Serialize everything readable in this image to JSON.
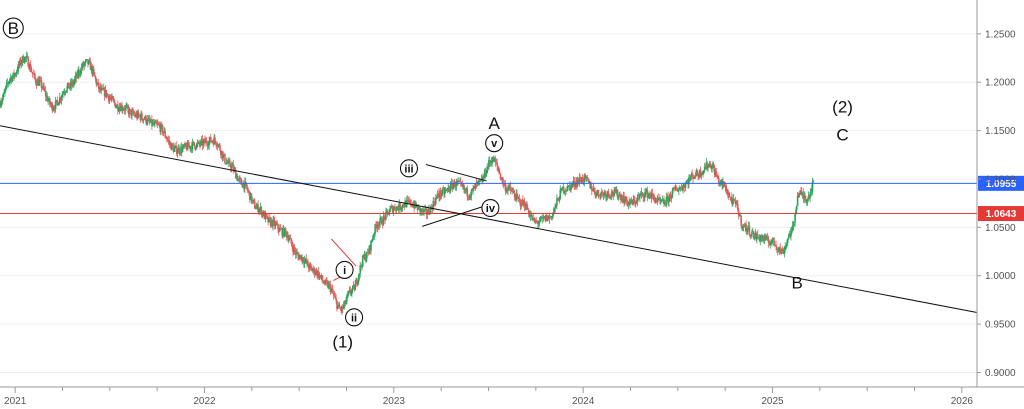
{
  "chart_data": {
    "type": "candlestick",
    "instrument_hint": "EUR/USD weekly",
    "y_axis": {
      "ticks": [
        "1.2500",
        "1.2000",
        "1.1500",
        "1.1000",
        "1.0500",
        "1.0000",
        "0.9500",
        "0.9000"
      ],
      "tick_values": [
        1.25,
        1.2,
        1.15,
        1.1,
        1.05,
        1.0,
        0.95,
        0.9
      ],
      "range": [
        0.885,
        1.285
      ],
      "position": "right"
    },
    "x_axis": {
      "ticks": [
        "2021",
        "2022",
        "2023",
        "2024",
        "2025",
        "2026"
      ],
      "tick_values": [
        2021.0,
        2022.0,
        2023.0,
        2024.0,
        2025.0,
        2026.0
      ],
      "range": [
        2020.92,
        2026.08
      ]
    },
    "price_path": [
      [
        2020.92,
        1.18
      ],
      [
        2020.98,
        1.205
      ],
      [
        2021.05,
        1.225
      ],
      [
        2021.12,
        1.2
      ],
      [
        2021.2,
        1.175
      ],
      [
        2021.28,
        1.195
      ],
      [
        2021.38,
        1.22
      ],
      [
        2021.46,
        1.19
      ],
      [
        2021.55,
        1.175
      ],
      [
        2021.65,
        1.165
      ],
      [
        2021.75,
        1.155
      ],
      [
        2021.85,
        1.13
      ],
      [
        2021.95,
        1.135
      ],
      [
        2022.05,
        1.14
      ],
      [
        2022.13,
        1.115
      ],
      [
        2022.2,
        1.095
      ],
      [
        2022.28,
        1.07
      ],
      [
        2022.35,
        1.055
      ],
      [
        2022.42,
        1.045
      ],
      [
        2022.5,
        1.02
      ],
      [
        2022.58,
        1.005
      ],
      [
        2022.65,
        0.99
      ],
      [
        2022.72,
        0.965
      ],
      [
        2022.78,
        0.985
      ],
      [
        2022.85,
        1.02
      ],
      [
        2022.92,
        1.055
      ],
      [
        2023.0,
        1.07
      ],
      [
        2023.08,
        1.075
      ],
      [
        2023.17,
        1.065
      ],
      [
        2023.25,
        1.085
      ],
      [
        2023.33,
        1.095
      ],
      [
        2023.4,
        1.085
      ],
      [
        2023.45,
        1.095
      ],
      [
        2023.52,
        1.12
      ],
      [
        2023.6,
        1.09
      ],
      [
        2023.68,
        1.075
      ],
      [
        2023.75,
        1.055
      ],
      [
        2023.82,
        1.06
      ],
      [
        2023.9,
        1.09
      ],
      [
        2024.0,
        1.1
      ],
      [
        2024.08,
        1.085
      ],
      [
        2024.17,
        1.085
      ],
      [
        2024.25,
        1.075
      ],
      [
        2024.33,
        1.085
      ],
      [
        2024.42,
        1.075
      ],
      [
        2024.5,
        1.09
      ],
      [
        2024.6,
        1.105
      ],
      [
        2024.67,
        1.115
      ],
      [
        2024.73,
        1.095
      ],
      [
        2024.8,
        1.075
      ],
      [
        2024.85,
        1.05
      ],
      [
        2024.92,
        1.04
      ],
      [
        2025.0,
        1.035
      ],
      [
        2025.05,
        1.025
      ],
      [
        2025.1,
        1.045
      ],
      [
        2025.14,
        1.085
      ],
      [
        2025.18,
        1.08
      ],
      [
        2025.22,
        1.095
      ]
    ],
    "reference_lines": [
      {
        "name": "current",
        "value": 1.0955,
        "label": "1.0955",
        "color": "#2962ff"
      },
      {
        "name": "level",
        "value": 1.0643,
        "label": "1.0643",
        "color": "#e53935"
      }
    ],
    "trendlines": [
      {
        "from": [
          2020.92,
          1.155
        ],
        "to": [
          2026.08,
          0.962
        ],
        "color": "#111111"
      },
      {
        "from": [
          2023.17,
          1.115
        ],
        "to": [
          2023.49,
          1.098
        ],
        "color": "#111111"
      },
      {
        "from": [
          2023.15,
          1.051
        ],
        "to": [
          2023.51,
          1.074
        ],
        "color": "#111111"
      },
      {
        "from": [
          2022.67,
          1.038
        ],
        "to": [
          2022.8,
          1.01
        ],
        "color": "#e53935"
      },
      {
        "from": [
          2022.68,
          0.995
        ],
        "to": [
          2022.77,
          1.004
        ],
        "color": "#e53935"
      }
    ],
    "annotations": {
      "circled": [
        {
          "text": "B",
          "at": [
            2020.99,
            1.256
          ],
          "size": "big"
        },
        {
          "text": "i",
          "at": [
            2022.74,
            1.006
          ],
          "size": "small"
        },
        {
          "text": "ii",
          "at": [
            2022.79,
            0.957
          ],
          "size": "small"
        },
        {
          "text": "iii",
          "at": [
            2023.08,
            1.111
          ],
          "size": "small"
        },
        {
          "text": "iv",
          "at": [
            2023.51,
            1.07
          ],
          "size": "small"
        },
        {
          "text": "v",
          "at": [
            2023.53,
            1.137
          ],
          "size": "small"
        }
      ],
      "plain": [
        {
          "text": "A",
          "at": [
            2023.53,
            1.158
          ]
        },
        {
          "text": "(1)",
          "at": [
            2022.73,
            0.932
          ]
        },
        {
          "text": "B",
          "at": [
            2025.13,
            0.993
          ]
        },
        {
          "text": "(2)",
          "at": [
            2025.37,
            1.175
          ]
        },
        {
          "text": "C",
          "at": [
            2025.37,
            1.146
          ]
        }
      ]
    },
    "colors": {
      "up": "#26a65b",
      "down": "#e05c5c",
      "grid": "#f0f0f0",
      "axis": "#9a9a9a"
    }
  }
}
